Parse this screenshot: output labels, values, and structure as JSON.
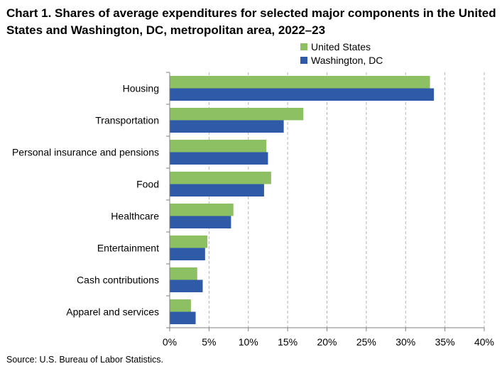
{
  "chart_data": {
    "type": "bar",
    "orientation": "horizontal",
    "title": "Chart 1. Shares of average expenditures for selected major components in the United States and Washington, DC, metropolitan area, 2022–23",
    "categories": [
      "Housing",
      "Transportation",
      "Personal insurance and pensions",
      "Food",
      "Healthcare",
      "Entertainment",
      "Cash contributions",
      "Apparel and services"
    ],
    "series": [
      {
        "name": "United States",
        "color": "#8cc063",
        "values": [
          33.1,
          17.0,
          12.3,
          12.9,
          8.1,
          4.8,
          3.5,
          2.7
        ]
      },
      {
        "name": "Washington, DC",
        "color": "#2e5aa7",
        "values": [
          33.6,
          14.5,
          12.5,
          12.0,
          7.8,
          4.5,
          4.2,
          3.3
        ]
      }
    ],
    "xlim": [
      0,
      40
    ],
    "xticks": [
      0,
      5,
      10,
      15,
      20,
      25,
      30,
      35,
      40
    ],
    "tick_suffix": "%",
    "xlabel": "",
    "ylabel": "",
    "grid": "vertical dashed",
    "legend_position": "top-right"
  },
  "source": "Source: U.S. Bureau of Labor Statistics."
}
